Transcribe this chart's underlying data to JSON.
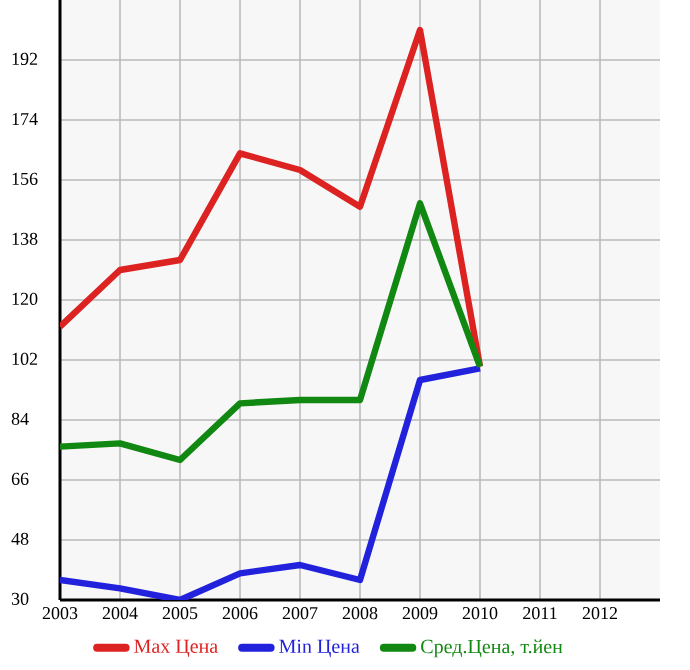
{
  "chart_data": {
    "type": "line",
    "x": [
      2003,
      2004,
      2005,
      2006,
      2007,
      2008,
      2009,
      2010
    ],
    "series": [
      {
        "name": "Max Цена",
        "color": "#dd2222",
        "values": [
          112,
          129,
          132,
          164,
          159,
          148,
          201,
          100
        ]
      },
      {
        "name": "Min Цена",
        "color": "#2222dd",
        "values": [
          36,
          33.5,
          30,
          38,
          40.5,
          36,
          96,
          99.5
        ]
      },
      {
        "name": "Сред.Цена, т.йен",
        "color": "#118811",
        "values": [
          76,
          77,
          72,
          89,
          90,
          90,
          149,
          100
        ]
      }
    ],
    "xlim": [
      2003,
      2013
    ],
    "xticks": [
      2003,
      2004,
      2005,
      2006,
      2007,
      2008,
      2009,
      2010,
      2011,
      2012
    ],
    "ylim": [
      30,
      210
    ],
    "yticks": [
      30,
      48,
      66,
      84,
      102,
      120,
      138,
      156,
      174,
      192
    ],
    "grid": true,
    "legend": "bottom",
    "marker": "none",
    "line_style": "solid"
  }
}
